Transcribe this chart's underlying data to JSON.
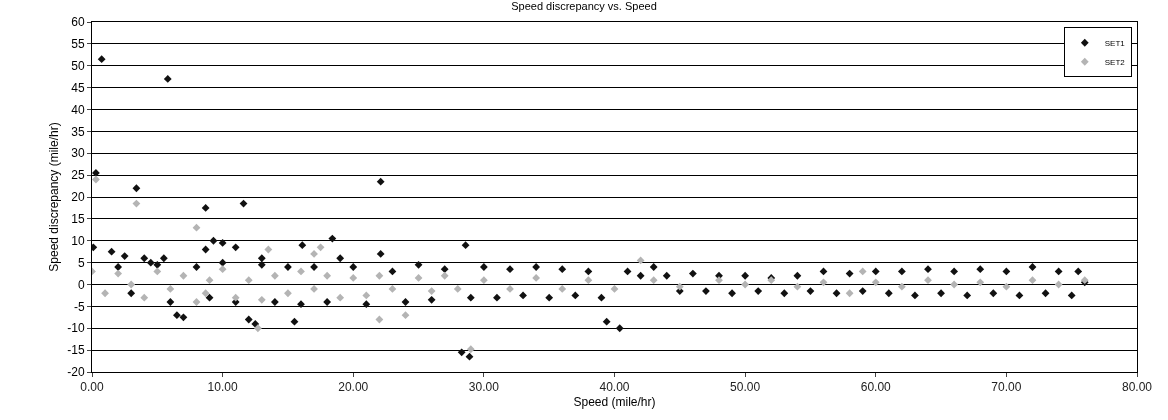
{
  "chart_data": {
    "type": "scatter",
    "title": "Speed discrepancy vs. Speed",
    "xlabel": "Speed (mile/hr)",
    "ylabel": "Speed discrepancy (mile/hr)",
    "xlim": [
      0,
      80
    ],
    "xticks": [
      {
        "value": 0,
        "label": "0.00"
      },
      {
        "value": 10,
        "label": "10.00"
      },
      {
        "value": 20,
        "label": "20.00"
      },
      {
        "value": 30,
        "label": "30.00"
      },
      {
        "value": 40,
        "label": "40.00"
      },
      {
        "value": 50,
        "label": "50.00"
      },
      {
        "value": 60,
        "label": "60.00"
      },
      {
        "value": 70,
        "label": "70.00"
      },
      {
        "value": 80,
        "label": "80.00"
      }
    ],
    "ylim": [
      -20,
      60
    ],
    "yticks": [
      -20,
      -15,
      -10,
      -5,
      0,
      5,
      10,
      15,
      20,
      25,
      30,
      35,
      40,
      45,
      50,
      55,
      60
    ],
    "grid": "y",
    "legend": "top right",
    "marker": "diamond",
    "series": [
      {
        "name": "SET1",
        "color": "#111111",
        "x": [
          0.1,
          0.3,
          0.74,
          1.5,
          3.4,
          2.5,
          4,
          4.5,
          5.8,
          5.5,
          6.5,
          7,
          8.7,
          8.7,
          9.3,
          10,
          11.6,
          11,
          12,
          12.5,
          13,
          16.1,
          15.5,
          18.4,
          19,
          22.1,
          22.1,
          28.6,
          28.3,
          28.9,
          39.4,
          40.4,
          2,
          3,
          5,
          6,
          8,
          9,
          10,
          11,
          13,
          14,
          15,
          16,
          17,
          18,
          20,
          21,
          23,
          24,
          25,
          26,
          27,
          29,
          30,
          31,
          32,
          33,
          34,
          35,
          36,
          37,
          38,
          39,
          41,
          42,
          43,
          44,
          45,
          46,
          47,
          48,
          49,
          50,
          51,
          52,
          53,
          54,
          55,
          56,
          57,
          58,
          59,
          60,
          61,
          62,
          63,
          64,
          65,
          66,
          67,
          68,
          69,
          70,
          71,
          72,
          73,
          74,
          75,
          75.5,
          76
        ],
        "values": [
          8.5,
          25.5,
          51.5,
          7.5,
          22,
          6.5,
          6,
          5,
          47,
          6,
          -7,
          -7.5,
          17.5,
          8,
          10,
          9.5,
          18.5,
          8.5,
          -8,
          -9,
          6,
          9,
          -8.5,
          10.5,
          6,
          23.5,
          7,
          9,
          -15.5,
          -16.5,
          -8.5,
          -10,
          4,
          -2,
          4.5,
          -4,
          4,
          -3,
          5,
          -4,
          4.5,
          -4,
          4,
          -4.5,
          4,
          -4,
          4,
          -4.5,
          3,
          -4,
          4.5,
          -3.5,
          3.5,
          -3,
          4,
          -3,
          3.5,
          -2.5,
          4,
          -3,
          3.5,
          -2.5,
          3,
          -3,
          3,
          2,
          4,
          2,
          -1.5,
          2.5,
          -1.5,
          2,
          -2,
          2,
          -1.5,
          1.5,
          -2,
          2,
          -1.5,
          3,
          -2,
          2.5,
          -1.5,
          3,
          -2,
          3,
          -2.5,
          3.5,
          -2,
          3,
          -2.5,
          3.5,
          -2,
          3,
          -2.5,
          4,
          -2,
          3,
          -2.5,
          3,
          0.5
        ]
      },
      {
        "name": "SET2",
        "color": "#b4b4b4",
        "x": [
          0.3,
          3.4,
          8,
          8.7,
          13.5,
          12.7,
          17.5,
          17,
          22,
          24,
          29,
          0,
          1,
          2,
          3,
          4,
          5,
          6,
          7,
          8,
          9,
          10,
          11,
          12,
          13,
          14,
          15,
          16,
          17,
          18,
          19,
          20,
          21,
          22,
          23,
          25,
          26,
          27,
          28,
          30,
          32,
          34,
          36,
          38,
          40,
          42,
          43,
          45,
          48,
          50,
          52,
          54,
          56,
          58,
          59,
          60,
          62,
          64,
          66,
          68,
          70,
          72,
          74,
          76
        ],
        "values": [
          24,
          18.5,
          13,
          -2,
          8,
          -10,
          8.5,
          7,
          -8,
          -7,
          -14.8,
          3,
          -2,
          2.5,
          0,
          -3,
          3,
          -1,
          2,
          -4,
          1,
          3.5,
          -3,
          1,
          -3.5,
          2,
          -2,
          3,
          -1,
          2,
          -3,
          1.5,
          -2.5,
          2,
          -1,
          1.5,
          -1.5,
          2,
          -1,
          1,
          -1,
          1.5,
          -1,
          1,
          -1,
          5.5,
          1,
          -0.5,
          1,
          0,
          1,
          -0.5,
          0.5,
          -2,
          3,
          0.5,
          -0.5,
          1,
          0,
          0.5,
          -0.5,
          1,
          0,
          1
        ]
      }
    ]
  }
}
